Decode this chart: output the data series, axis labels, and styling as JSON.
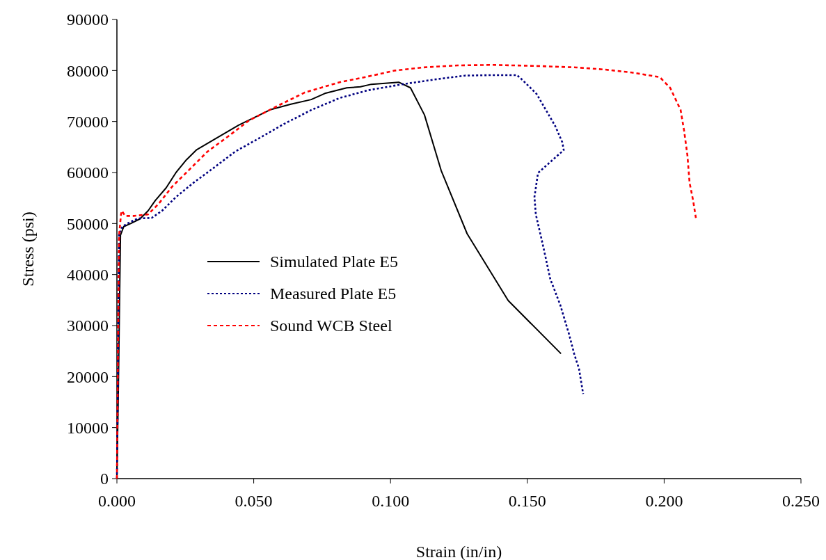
{
  "chart_data": {
    "type": "line",
    "xlabel": "Strain (in/in)",
    "ylabel": "Stress (psi)",
    "xlim": [
      0,
      0.25
    ],
    "xticks": [
      {
        "value": 0,
        "label": "0.000"
      },
      {
        "value": 0.05,
        "label": "0.050"
      },
      {
        "value": 0.1,
        "label": "0.100"
      },
      {
        "value": 0.15,
        "label": "0.150"
      },
      {
        "value": 0.2,
        "label": "0.200"
      },
      {
        "value": 0.25,
        "label": "0.250"
      }
    ],
    "ylim": [
      0,
      90000
    ],
    "yticks": [
      0,
      10000,
      20000,
      30000,
      40000,
      50000,
      60000,
      70000,
      80000,
      90000
    ],
    "grid": false,
    "legend": "left",
    "series": [
      {
        "name": "Simulated Plate E5",
        "color": "#000000",
        "line_style": "solid",
        "x": [
          0,
          0.0005,
          0.0013,
          0.0025,
          0.005,
          0.0084,
          0.0114,
          0.014,
          0.018,
          0.0216,
          0.0254,
          0.029,
          0.0356,
          0.0445,
          0.056,
          0.0636,
          0.071,
          0.076,
          0.084,
          0.089,
          0.093,
          0.098,
          0.103,
          0.1073,
          0.1124,
          0.1185,
          0.128,
          0.143,
          0.1623
        ],
        "values": [
          0,
          16400,
          47700,
          49400,
          50000,
          50900,
          52500,
          54500,
          57000,
          60000,
          62500,
          64400,
          66500,
          69300,
          72300,
          73400,
          74300,
          75500,
          76600,
          76800,
          77300,
          77500,
          77700,
          76600,
          71300,
          60400,
          48000,
          34900,
          24500
        ]
      },
      {
        "name": "Measured Plate E5",
        "color": "#000080",
        "line_style": "dotted",
        "x": [
          0,
          0.0004,
          0.0008,
          0.002,
          0.0038,
          0.0076,
          0.0127,
          0.0165,
          0.0216,
          0.028,
          0.0356,
          0.0432,
          0.0509,
          0.061,
          0.0712,
          0.0814,
          0.0916,
          0.1043,
          0.117,
          0.1272,
          0.1373,
          0.1462,
          0.1483,
          0.1534,
          0.1602,
          0.1628,
          0.1633,
          0.1539,
          0.1526,
          0.1531,
          0.1556,
          0.1584,
          0.162,
          0.1653,
          0.1671,
          0.1689,
          0.1704
        ],
        "values": [
          0,
          20000,
          48000,
          49400,
          50000,
          51000,
          51100,
          52500,
          55200,
          58000,
          61000,
          64100,
          66400,
          69500,
          72300,
          74600,
          76100,
          77300,
          78300,
          79000,
          79100,
          79100,
          78100,
          75400,
          69100,
          65900,
          64400,
          59900,
          55200,
          51800,
          46000,
          39100,
          34100,
          28200,
          24500,
          21500,
          16600
        ]
      },
      {
        "name": "Sound WCB Steel",
        "color": "#ff0000",
        "line_style": "dashed",
        "x": [
          0,
          0.0004,
          0.0008,
          0.0015,
          0.0018,
          0.003,
          0.0064,
          0.0114,
          0.0153,
          0.0203,
          0.0254,
          0.0331,
          0.0407,
          0.0483,
          0.0585,
          0.0687,
          0.0814,
          0.0916,
          0.1017,
          0.1119,
          0.1246,
          0.1373,
          0.1526,
          0.1679,
          0.178,
          0.1882,
          0.1984,
          0.2022,
          0.206,
          0.2073,
          0.2085,
          0.2093,
          0.2106,
          0.2116
        ],
        "values": [
          0,
          25000,
          47700,
          51800,
          52500,
          51500,
          51500,
          51800,
          53900,
          57300,
          60000,
          64100,
          67100,
          70200,
          73000,
          75700,
          77700,
          78800,
          80000,
          80600,
          81000,
          81100,
          80900,
          80600,
          80200,
          79600,
          78700,
          76600,
          72300,
          68200,
          63400,
          58000,
          54500,
          51100
        ]
      }
    ]
  }
}
